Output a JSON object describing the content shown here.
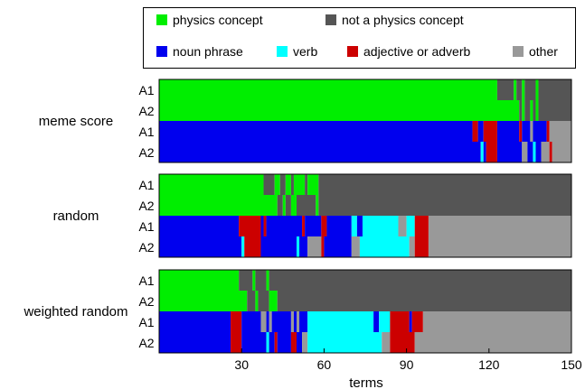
{
  "chart_data": {
    "type": "heatmap",
    "xlabel": "terms",
    "xlim": [
      0,
      150
    ],
    "xticks": [
      30,
      60,
      90,
      120,
      150
    ],
    "legend": {
      "placement": "top",
      "entries": [
        {
          "label": "physics concept",
          "color": "#00ee00"
        },
        {
          "label": "not a physics concept",
          "color": "#555555"
        },
        {
          "label": "noun phrase",
          "color": "#0000ee"
        },
        {
          "label": "verb",
          "color": "#00ffff"
        },
        {
          "label": "adjective or adverb",
          "color": "#cc0000"
        },
        {
          "label": "other",
          "color": "#999999"
        }
      ]
    },
    "panels": [
      {
        "label": "meme score",
        "rows": [
          {
            "label": "A1",
            "kind": "physics",
            "segments": [
              [
                "P",
                0,
                123
              ],
              [
                "N",
                123,
                129
              ],
              [
                "P",
                129,
                130
              ],
              [
                "N",
                130,
                132
              ],
              [
                "P",
                132,
                133
              ],
              [
                "N",
                133,
                137
              ],
              [
                "P",
                137,
                138
              ],
              [
                "N",
                138,
                150
              ]
            ]
          },
          {
            "label": "A2",
            "kind": "physics",
            "segments": [
              [
                "P",
                0,
                131
              ],
              [
                "N",
                131,
                132
              ],
              [
                "P",
                132,
                133
              ],
              [
                "N",
                133,
                135
              ],
              [
                "P",
                135,
                136
              ],
              [
                "N",
                136,
                137
              ],
              [
                "P",
                137,
                138
              ],
              [
                "N",
                138,
                150
              ]
            ]
          },
          {
            "label": "A1",
            "kind": "pos",
            "segments": [
              [
                "noun",
                0,
                114
              ],
              [
                "adj",
                114,
                116
              ],
              [
                "noun",
                116,
                118
              ],
              [
                "adj",
                118,
                123
              ],
              [
                "noun",
                123,
                131
              ],
              [
                "adj",
                131,
                132
              ],
              [
                "noun",
                132,
                135
              ],
              [
                "other",
                135,
                136
              ],
              [
                "noun",
                136,
                141
              ],
              [
                "adj",
                141,
                142
              ],
              [
                "other",
                142,
                150
              ]
            ]
          },
          {
            "label": "A2",
            "kind": "pos",
            "segments": [
              [
                "noun",
                0,
                117
              ],
              [
                "verb",
                117,
                118
              ],
              [
                "noun",
                118,
                119
              ],
              [
                "adj",
                119,
                123
              ],
              [
                "noun",
                123,
                132
              ],
              [
                "other",
                132,
                134
              ],
              [
                "noun",
                134,
                136
              ],
              [
                "verb",
                136,
                137
              ],
              [
                "noun",
                137,
                139
              ],
              [
                "other",
                139,
                142
              ],
              [
                "adj",
                142,
                143
              ],
              [
                "other",
                143,
                150
              ]
            ]
          }
        ]
      },
      {
        "label": "random",
        "rows": [
          {
            "label": "A1",
            "kind": "physics",
            "segments": [
              [
                "P",
                0,
                38
              ],
              [
                "N",
                38,
                42
              ],
              [
                "P",
                42,
                44
              ],
              [
                "N",
                44,
                46
              ],
              [
                "P",
                46,
                48
              ],
              [
                "N",
                48,
                49
              ],
              [
                "P",
                49,
                53
              ],
              [
                "N",
                53,
                54
              ],
              [
                "P",
                54,
                58
              ],
              [
                "N",
                58,
                150
              ]
            ]
          },
          {
            "label": "A2",
            "kind": "physics",
            "segments": [
              [
                "P",
                0,
                43
              ],
              [
                "N",
                43,
                45
              ],
              [
                "P",
                45,
                46
              ],
              [
                "N",
                46,
                48
              ],
              [
                "P",
                48,
                50
              ],
              [
                "N",
                50,
                57
              ],
              [
                "P",
                57,
                58
              ],
              [
                "N",
                58,
                150
              ]
            ]
          },
          {
            "label": "A1",
            "kind": "pos",
            "segments": [
              [
                "noun",
                0,
                29
              ],
              [
                "adj",
                29,
                37
              ],
              [
                "noun",
                37,
                38
              ],
              [
                "adj",
                38,
                39
              ],
              [
                "noun",
                39,
                52
              ],
              [
                "adj",
                52,
                53
              ],
              [
                "noun",
                53,
                59
              ],
              [
                "adj",
                59,
                61
              ],
              [
                "noun",
                61,
                70
              ],
              [
                "verb",
                70,
                72
              ],
              [
                "noun",
                72,
                74
              ],
              [
                "verb",
                74,
                87
              ],
              [
                "other",
                87,
                90
              ],
              [
                "verb",
                90,
                93
              ],
              [
                "adj",
                93,
                98
              ],
              [
                "other",
                98,
                150
              ]
            ]
          },
          {
            "label": "A2",
            "kind": "pos",
            "segments": [
              [
                "noun",
                0,
                30
              ],
              [
                "verb",
                30,
                31
              ],
              [
                "adj",
                31,
                37
              ],
              [
                "noun",
                37,
                50
              ],
              [
                "verb",
                50,
                51
              ],
              [
                "noun",
                51,
                54
              ],
              [
                "other",
                54,
                59
              ],
              [
                "adj",
                59,
                60
              ],
              [
                "noun",
                60,
                70
              ],
              [
                "other",
                70,
                73
              ],
              [
                "verb",
                73,
                91
              ],
              [
                "other",
                91,
                93
              ],
              [
                "adj",
                93,
                98
              ],
              [
                "other",
                98,
                150
              ]
            ]
          }
        ]
      },
      {
        "label": "weighted random",
        "rows": [
          {
            "label": "A1",
            "kind": "physics",
            "segments": [
              [
                "P",
                0,
                29
              ],
              [
                "N",
                29,
                34
              ],
              [
                "P",
                34,
                35
              ],
              [
                "N",
                35,
                39
              ],
              [
                "P",
                39,
                40
              ],
              [
                "N",
                40,
                150
              ]
            ]
          },
          {
            "label": "A2",
            "kind": "physics",
            "segments": [
              [
                "P",
                0,
                32
              ],
              [
                "N",
                32,
                35
              ],
              [
                "P",
                35,
                36
              ],
              [
                "N",
                36,
                40
              ],
              [
                "P",
                40,
                43
              ],
              [
                "N",
                43,
                150
              ]
            ]
          },
          {
            "label": "A1",
            "kind": "pos",
            "segments": [
              [
                "noun",
                0,
                26
              ],
              [
                "adj",
                26,
                30
              ],
              [
                "noun",
                30,
                37
              ],
              [
                "other",
                37,
                39
              ],
              [
                "noun",
                39,
                40
              ],
              [
                "other",
                40,
                41
              ],
              [
                "noun",
                41,
                48
              ],
              [
                "other",
                48,
                49
              ],
              [
                "noun",
                49,
                50
              ],
              [
                "other",
                50,
                51
              ],
              [
                "noun",
                51,
                54
              ],
              [
                "verb",
                54,
                78
              ],
              [
                "noun",
                78,
                80
              ],
              [
                "verb",
                80,
                84
              ],
              [
                "adj",
                84,
                91
              ],
              [
                "noun",
                91,
                92
              ],
              [
                "adj",
                92,
                96
              ],
              [
                "other",
                96,
                150
              ]
            ]
          },
          {
            "label": "A2",
            "kind": "pos",
            "segments": [
              [
                "noun",
                0,
                26
              ],
              [
                "adj",
                26,
                30
              ],
              [
                "noun",
                30,
                39
              ],
              [
                "verb",
                39,
                40
              ],
              [
                "noun",
                40,
                42
              ],
              [
                "adj",
                42,
                43
              ],
              [
                "noun",
                43,
                48
              ],
              [
                "adj",
                48,
                50
              ],
              [
                "noun",
                50,
                52
              ],
              [
                "other",
                52,
                54
              ],
              [
                "verb",
                54,
                81
              ],
              [
                "other",
                81,
                84
              ],
              [
                "adj",
                84,
                93
              ],
              [
                "other",
                93,
                150
              ]
            ]
          }
        ]
      }
    ]
  }
}
